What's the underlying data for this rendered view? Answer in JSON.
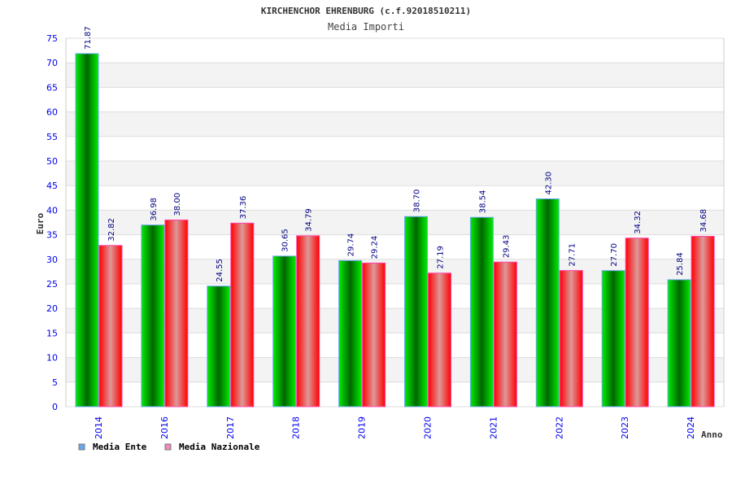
{
  "chart_data": {
    "type": "bar",
    "title": "KIRCHENCHOR EHRENBURG (c.f.92018510211)",
    "subtitle": "Media Importi",
    "xlabel": "Anno",
    "ylabel": "Euro",
    "ylim": [
      0,
      75
    ],
    "yticks": [
      0,
      5,
      10,
      15,
      20,
      25,
      30,
      35,
      40,
      45,
      50,
      55,
      60,
      65,
      70,
      75
    ],
    "grid": true,
    "legend_position": "bottom-left",
    "categories": [
      "2014",
      "2016",
      "2017",
      "2018",
      "2019",
      "2020",
      "2021",
      "2022",
      "2023",
      "2024"
    ],
    "series": [
      {
        "name": "Media Ente",
        "color": "#00cc00",
        "legend_color": "#66aaee",
        "values": [
          71.87,
          36.98,
          24.55,
          30.65,
          29.74,
          38.7,
          38.54,
          42.3,
          27.7,
          25.84
        ],
        "labels": [
          "71.87",
          "36.98",
          "24.55",
          "30.65",
          "29.74",
          "38.70",
          "38.54",
          "42.30",
          "27.70",
          "25.84"
        ]
      },
      {
        "name": "Media Nazionale",
        "color": "#ff0000",
        "legend_color": "#ee88bb",
        "values": [
          32.82,
          38.0,
          37.36,
          34.79,
          29.24,
          27.19,
          29.43,
          27.71,
          34.32,
          34.68
        ],
        "labels": [
          "32.82",
          "38.00",
          "37.36",
          "34.79",
          "29.24",
          "27.19",
          "29.43",
          "27.71",
          "34.32",
          "34.68"
        ]
      }
    ]
  }
}
